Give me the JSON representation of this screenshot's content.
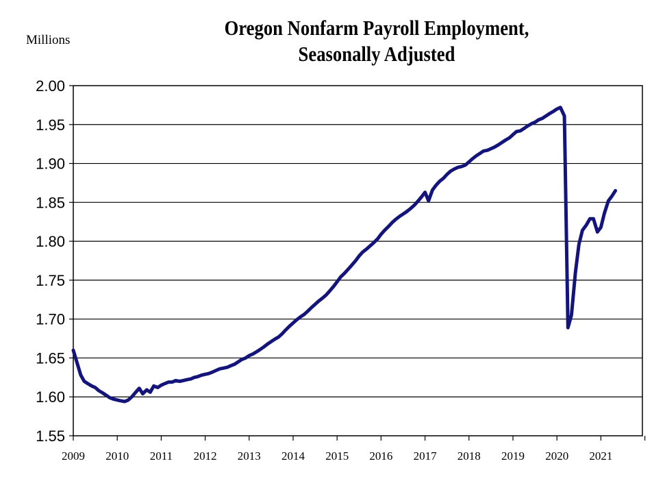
{
  "chart_data": {
    "type": "line",
    "title_line1": "Oregon Nonfarm Payroll Employment,",
    "title_line2": "Seasonally Adjusted",
    "unit_label": "Millions",
    "xlabel": "",
    "ylabel": "",
    "xlim": [
      2009,
      2022
    ],
    "ylim": [
      1.55,
      2.0
    ],
    "y_ticks": [
      "1.55",
      "1.60",
      "1.65",
      "1.70",
      "1.75",
      "1.80",
      "1.85",
      "1.90",
      "1.95",
      "2.00"
    ],
    "x_ticks": [
      "2009",
      "2010",
      "2011",
      "2012",
      "2013",
      "2014",
      "2015",
      "2016",
      "2017",
      "2018",
      "2019",
      "2020",
      "2021"
    ],
    "grid": "horizontal",
    "line_color": "#14157a",
    "series": [
      {
        "points": [
          [
            2009.0,
            1.66
          ],
          [
            2009.08,
            1.645
          ],
          [
            2009.17,
            1.628
          ],
          [
            2009.25,
            1.62
          ],
          [
            2009.33,
            1.617
          ],
          [
            2009.42,
            1.614
          ],
          [
            2009.5,
            1.612
          ],
          [
            2009.58,
            1.608
          ],
          [
            2009.67,
            1.605
          ],
          [
            2009.75,
            1.602
          ],
          [
            2009.83,
            1.599
          ],
          [
            2009.92,
            1.597
          ],
          [
            2010.0,
            1.596
          ],
          [
            2010.08,
            1.595
          ],
          [
            2010.17,
            1.594
          ],
          [
            2010.25,
            1.596
          ],
          [
            2010.33,
            1.6
          ],
          [
            2010.42,
            1.606
          ],
          [
            2010.5,
            1.611
          ],
          [
            2010.58,
            1.604
          ],
          [
            2010.67,
            1.609
          ],
          [
            2010.75,
            1.606
          ],
          [
            2010.83,
            1.614
          ],
          [
            2010.92,
            1.612
          ],
          [
            2011.0,
            1.615
          ],
          [
            2011.08,
            1.617
          ],
          [
            2011.17,
            1.619
          ],
          [
            2011.25,
            1.619
          ],
          [
            2011.33,
            1.621
          ],
          [
            2011.42,
            1.62
          ],
          [
            2011.5,
            1.621
          ],
          [
            2011.58,
            1.622
          ],
          [
            2011.67,
            1.623
          ],
          [
            2011.75,
            1.625
          ],
          [
            2011.83,
            1.626
          ],
          [
            2011.92,
            1.628
          ],
          [
            2012.0,
            1.629
          ],
          [
            2012.08,
            1.63
          ],
          [
            2012.17,
            1.632
          ],
          [
            2012.25,
            1.634
          ],
          [
            2012.33,
            1.636
          ],
          [
            2012.42,
            1.637
          ],
          [
            2012.5,
            1.638
          ],
          [
            2012.58,
            1.64
          ],
          [
            2012.67,
            1.642
          ],
          [
            2012.75,
            1.645
          ],
          [
            2012.83,
            1.648
          ],
          [
            2012.92,
            1.65
          ],
          [
            2013.0,
            1.653
          ],
          [
            2013.08,
            1.655
          ],
          [
            2013.17,
            1.658
          ],
          [
            2013.25,
            1.661
          ],
          [
            2013.33,
            1.664
          ],
          [
            2013.42,
            1.668
          ],
          [
            2013.5,
            1.671
          ],
          [
            2013.58,
            1.674
          ],
          [
            2013.67,
            1.677
          ],
          [
            2013.75,
            1.681
          ],
          [
            2013.83,
            1.686
          ],
          [
            2013.92,
            1.691
          ],
          [
            2014.0,
            1.695
          ],
          [
            2014.08,
            1.699
          ],
          [
            2014.17,
            1.703
          ],
          [
            2014.25,
            1.706
          ],
          [
            2014.33,
            1.71
          ],
          [
            2014.42,
            1.715
          ],
          [
            2014.5,
            1.719
          ],
          [
            2014.58,
            1.723
          ],
          [
            2014.67,
            1.727
          ],
          [
            2014.75,
            1.731
          ],
          [
            2014.83,
            1.736
          ],
          [
            2014.92,
            1.742
          ],
          [
            2015.0,
            1.748
          ],
          [
            2015.08,
            1.754
          ],
          [
            2015.17,
            1.759
          ],
          [
            2015.25,
            1.764
          ],
          [
            2015.33,
            1.769
          ],
          [
            2015.42,
            1.775
          ],
          [
            2015.5,
            1.781
          ],
          [
            2015.58,
            1.786
          ],
          [
            2015.67,
            1.79
          ],
          [
            2015.75,
            1.794
          ],
          [
            2015.83,
            1.798
          ],
          [
            2015.92,
            1.803
          ],
          [
            2016.0,
            1.809
          ],
          [
            2016.08,
            1.814
          ],
          [
            2016.17,
            1.819
          ],
          [
            2016.25,
            1.824
          ],
          [
            2016.33,
            1.828
          ],
          [
            2016.42,
            1.832
          ],
          [
            2016.5,
            1.835
          ],
          [
            2016.58,
            1.838
          ],
          [
            2016.67,
            1.842
          ],
          [
            2016.75,
            1.846
          ],
          [
            2016.83,
            1.851
          ],
          [
            2016.92,
            1.857
          ],
          [
            2017.0,
            1.863
          ],
          [
            2017.08,
            1.852
          ],
          [
            2017.17,
            1.866
          ],
          [
            2017.25,
            1.872
          ],
          [
            2017.33,
            1.877
          ],
          [
            2017.42,
            1.881
          ],
          [
            2017.5,
            1.886
          ],
          [
            2017.58,
            1.89
          ],
          [
            2017.67,
            1.893
          ],
          [
            2017.75,
            1.895
          ],
          [
            2017.83,
            1.896
          ],
          [
            2017.92,
            1.898
          ],
          [
            2018.0,
            1.902
          ],
          [
            2018.08,
            1.906
          ],
          [
            2018.17,
            1.91
          ],
          [
            2018.25,
            1.913
          ],
          [
            2018.33,
            1.916
          ],
          [
            2018.42,
            1.917
          ],
          [
            2018.5,
            1.919
          ],
          [
            2018.58,
            1.921
          ],
          [
            2018.67,
            1.924
          ],
          [
            2018.75,
            1.927
          ],
          [
            2018.83,
            1.93
          ],
          [
            2018.92,
            1.933
          ],
          [
            2019.0,
            1.937
          ],
          [
            2019.08,
            1.941
          ],
          [
            2019.17,
            1.942
          ],
          [
            2019.25,
            1.945
          ],
          [
            2019.33,
            1.948
          ],
          [
            2019.42,
            1.951
          ],
          [
            2019.5,
            1.953
          ],
          [
            2019.58,
            1.956
          ],
          [
            2019.67,
            1.958
          ],
          [
            2019.75,
            1.961
          ],
          [
            2019.83,
            1.964
          ],
          [
            2019.92,
            1.967
          ],
          [
            2020.0,
            1.97
          ],
          [
            2020.08,
            1.972
          ],
          [
            2020.17,
            1.961
          ],
          [
            2020.25,
            1.689
          ],
          [
            2020.33,
            1.705
          ],
          [
            2020.42,
            1.76
          ],
          [
            2020.5,
            1.796
          ],
          [
            2020.58,
            1.814
          ],
          [
            2020.67,
            1.821
          ],
          [
            2020.75,
            1.829
          ],
          [
            2020.83,
            1.829
          ],
          [
            2020.92,
            1.812
          ],
          [
            2021.0,
            1.818
          ],
          [
            2021.08,
            1.836
          ],
          [
            2021.17,
            1.852
          ],
          [
            2021.25,
            1.858
          ],
          [
            2021.33,
            1.865
          ]
        ]
      }
    ]
  }
}
